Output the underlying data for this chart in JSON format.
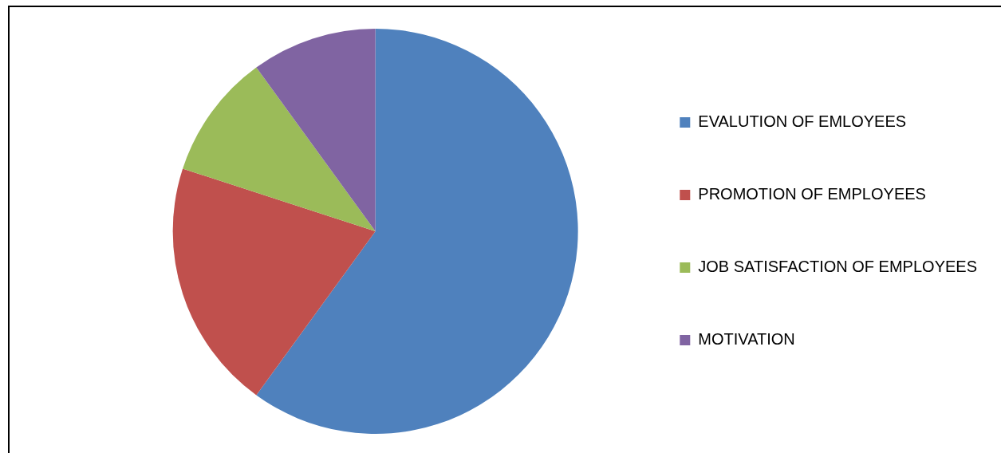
{
  "chart_data": {
    "type": "pie",
    "categories": [
      "EVALUTION OF EMLOYEES",
      "PROMOTION OF EMPLOYEES",
      "JOB SATISFACTION OF EMPLOYEES",
      "MOTIVATION"
    ],
    "values": [
      60,
      20,
      10,
      10
    ],
    "colors": [
      "#4f81bd",
      "#c0504d",
      "#9bbb59",
      "#8064a2"
    ],
    "legend": "right"
  }
}
